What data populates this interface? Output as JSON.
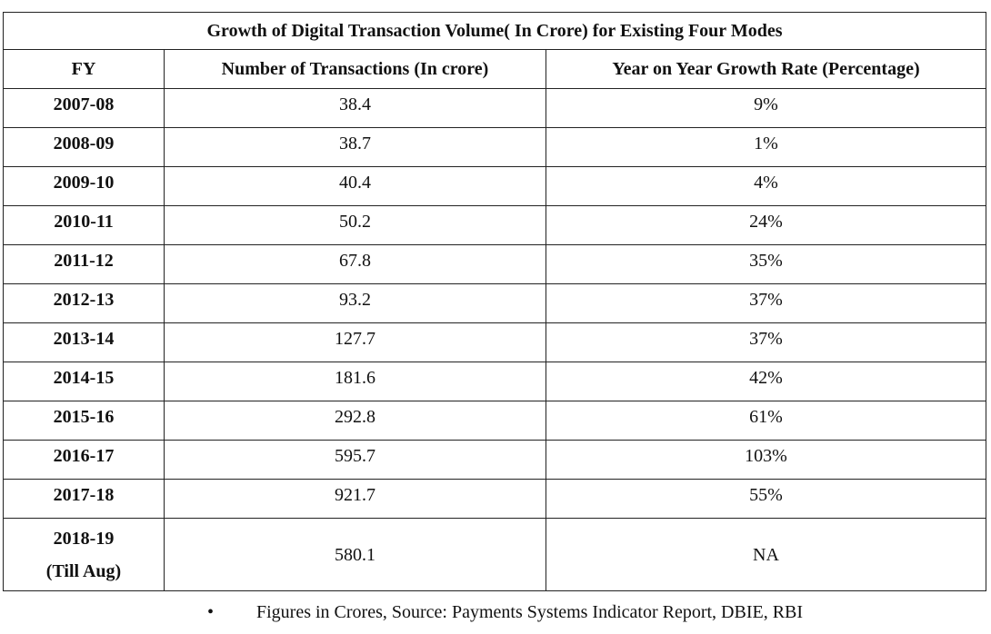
{
  "table": {
    "title": "Growth of Digital Transaction Volume( In Crore) for Existing Four Modes",
    "headers": [
      "FY",
      "Number of Transactions (In crore)",
      "Year on Year Growth Rate (Percentage)"
    ],
    "rows": [
      {
        "fy": "2007-08",
        "transactions": "38.4",
        "growth": "9%"
      },
      {
        "fy": "2008-09",
        "transactions": "38.7",
        "growth": "1%"
      },
      {
        "fy": "2009-10",
        "transactions": "40.4",
        "growth": "4%"
      },
      {
        "fy": "2010-11",
        "transactions": "50.2",
        "growth": "24%"
      },
      {
        "fy": "2011-12",
        "transactions": "67.8",
        "growth": "35%"
      },
      {
        "fy": "2012-13",
        "transactions": "93.2",
        "growth": "37%"
      },
      {
        "fy": "2013-14",
        "transactions": "127.7",
        "growth": "37%"
      },
      {
        "fy": "2014-15",
        "transactions": "181.6",
        "growth": "42%"
      },
      {
        "fy": "2015-16",
        "transactions": "292.8",
        "growth": "61%"
      },
      {
        "fy": "2016-17",
        "transactions": "595.7",
        "growth": "103%"
      },
      {
        "fy": "2017-18",
        "transactions": "921.7",
        "growth": "55%"
      }
    ],
    "last_row": {
      "fy_line1": "2018-19",
      "fy_line2": "(Till Aug)",
      "transactions": "580.1",
      "growth": "NA"
    }
  },
  "note": {
    "bullet": "•",
    "text": "Figures in Crores, Source: Payments Systems Indicator Report, DBIE, RBI"
  }
}
